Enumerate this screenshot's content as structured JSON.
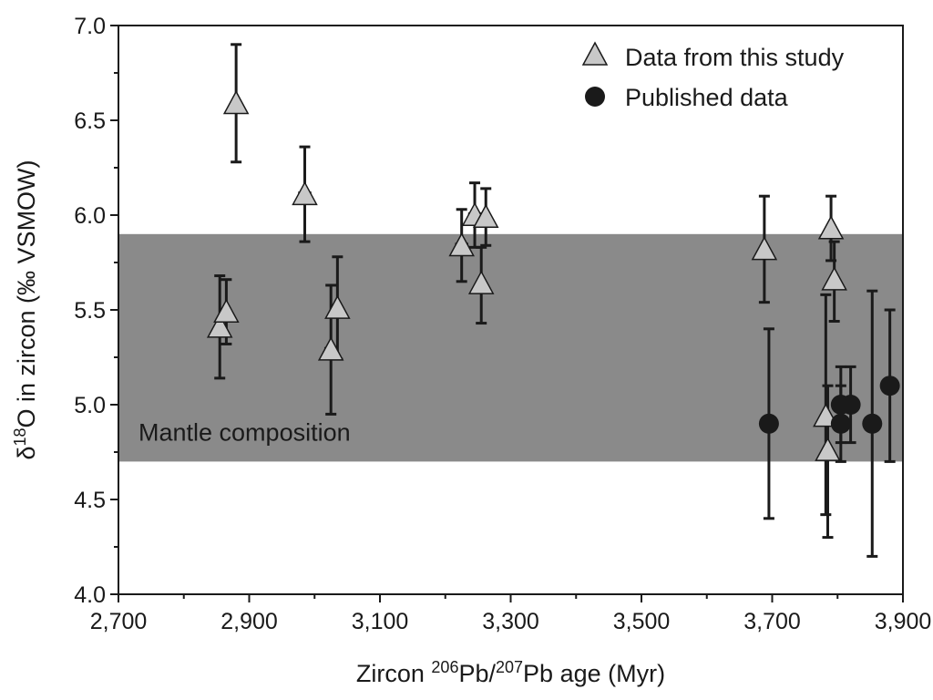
{
  "chart_data": {
    "type": "scatter",
    "title": "",
    "xlabel_parts": {
      "prefix": "Zircon ",
      "sup1": "206",
      "mid": "Pb/",
      "sup2": "207",
      "suffix": "Pb age (Myr)"
    },
    "ylabel_parts": {
      "prefix": "δ",
      "sup": "18",
      "suffix": "O in zircon (‰ VSMOW)"
    },
    "xlim": [
      2700,
      3900
    ],
    "ylim": [
      4.0,
      7.0
    ],
    "x_ticks": [
      2700,
      2900,
      3100,
      3300,
      3500,
      3700,
      3900
    ],
    "x_tick_labels": [
      "2,700",
      "2,900",
      "3,100",
      "3,300",
      "3,500",
      "3,700",
      "3,900"
    ],
    "x_minor_step": 100,
    "y_ticks": [
      4.0,
      4.5,
      5.0,
      5.5,
      6.0,
      6.5,
      7.0
    ],
    "y_tick_labels": [
      "4.0",
      "4.5",
      "5.0",
      "5.5",
      "6.0",
      "6.5",
      "7.0"
    ],
    "y_minor_step": 0.25,
    "band": {
      "label": "Mantle composition",
      "y_low": 4.7,
      "y_high": 5.9,
      "color": "#8a8a8a"
    },
    "legend": {
      "position": "top-right"
    },
    "series": [
      {
        "name": "Data from this study",
        "marker": "triangle",
        "color": "#c8c8c8",
        "points": [
          {
            "x": 2880,
            "y": 6.58,
            "ylo": 6.28,
            "yhi": 6.9,
            "xerr": 0
          },
          {
            "x": 2855,
            "y": 5.4,
            "ylo": 5.14,
            "yhi": 5.68,
            "xerr": 0
          },
          {
            "x": 2865,
            "y": 5.48,
            "ylo": 5.32,
            "yhi": 5.66,
            "xerr": 0
          },
          {
            "x": 2985,
            "y": 6.1,
            "ylo": 5.86,
            "yhi": 6.36,
            "xerr": 8
          },
          {
            "x": 3025,
            "y": 5.28,
            "ylo": 4.95,
            "yhi": 5.63,
            "xerr": 8
          },
          {
            "x": 3035,
            "y": 5.5,
            "ylo": 5.24,
            "yhi": 5.78,
            "xerr": 0
          },
          {
            "x": 3225,
            "y": 5.83,
            "ylo": 5.65,
            "yhi": 6.03,
            "xerr": 8
          },
          {
            "x": 3245,
            "y": 5.99,
            "ylo": 5.83,
            "yhi": 6.17,
            "xerr": 8
          },
          {
            "x": 3262,
            "y": 5.98,
            "ylo": 5.84,
            "yhi": 6.14,
            "xerr": 0
          },
          {
            "x": 3255,
            "y": 5.63,
            "ylo": 5.43,
            "yhi": 5.83,
            "xerr": 0
          },
          {
            "x": 3688,
            "y": 5.81,
            "ylo": 5.54,
            "yhi": 6.1,
            "xerr": 0
          },
          {
            "x": 3790,
            "y": 5.92,
            "ylo": 5.76,
            "yhi": 6.1,
            "xerr": 0
          },
          {
            "x": 3795,
            "y": 5.65,
            "ylo": 5.44,
            "yhi": 5.86,
            "xerr": 0
          },
          {
            "x": 3782,
            "y": 4.93,
            "ylo": 4.42,
            "yhi": 5.58,
            "xerr": 0
          },
          {
            "x": 3785,
            "y": 4.75,
            "ylo": 4.3,
            "yhi": 5.1,
            "xerr": 0
          }
        ]
      },
      {
        "name": "Published data",
        "marker": "circle",
        "color": "#1a1a1a",
        "points": [
          {
            "x": 3695,
            "y": 4.9,
            "ylo": 4.4,
            "yhi": 5.4,
            "xerr": 0
          },
          {
            "x": 3805,
            "y": 5.0,
            "ylo": 4.8,
            "yhi": 5.2,
            "xerr": 0
          },
          {
            "x": 3805,
            "y": 4.9,
            "ylo": 4.7,
            "yhi": 5.1,
            "xerr": 0
          },
          {
            "x": 3820,
            "y": 5.0,
            "ylo": 4.8,
            "yhi": 5.2,
            "xerr": 0
          },
          {
            "x": 3853,
            "y": 4.9,
            "ylo": 4.2,
            "yhi": 5.6,
            "xerr": 0
          },
          {
            "x": 3880,
            "y": 5.1,
            "ylo": 4.7,
            "yhi": 5.5,
            "xerr": 0
          }
        ]
      }
    ]
  }
}
